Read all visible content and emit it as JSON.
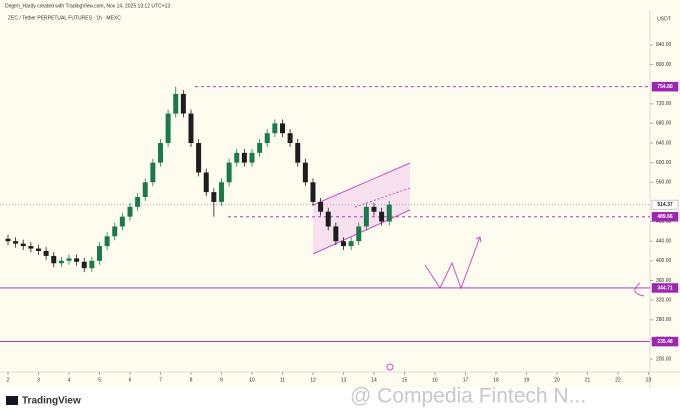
{
  "header": {
    "credit": "Degen_Hardy created with TradingView.com, Nov 14, 2025 13:12 UTC+13",
    "symbol": "ZEC / Tether PERPETUAL FUTURES · 1h · MEXC"
  },
  "chart_data": {
    "type": "candlestick",
    "currency": "USDT",
    "up_color": "#1b7a4a",
    "down_color": "#1e1e1e",
    "x": [
      2,
      2.25,
      2.5,
      2.75,
      3,
      3.25,
      3.5,
      3.75,
      4,
      4.25,
      4.5,
      4.75,
      5,
      5.25,
      5.5,
      5.75,
      6,
      6.25,
      6.5,
      6.75,
      7,
      7.25,
      7.5,
      7.75,
      8,
      8.25,
      8.5,
      8.75,
      9,
      9.25,
      9.5,
      9.75,
      10,
      10.25,
      10.5,
      10.75,
      11,
      11.25,
      11.5,
      11.75,
      12,
      12.25,
      12.5,
      12.75,
      13,
      13.25,
      13.5,
      13.75,
      14,
      14.25,
      14.5
    ],
    "open": [
      445,
      440,
      435,
      430,
      425,
      420,
      410,
      395,
      400,
      405,
      398,
      385,
      400,
      430,
      450,
      470,
      490,
      510,
      530,
      560,
      600,
      640,
      700,
      740,
      700,
      640,
      580,
      540,
      520,
      560,
      600,
      620,
      600,
      620,
      640,
      660,
      680,
      660,
      640,
      600,
      560,
      520,
      500,
      470,
      440,
      430,
      440,
      470,
      510,
      500,
      480
    ],
    "high": [
      453,
      448,
      443,
      438,
      433,
      428,
      418,
      408,
      413,
      413,
      406,
      408,
      438,
      458,
      478,
      498,
      518,
      538,
      568,
      608,
      648,
      708,
      754.8,
      748,
      708,
      648,
      588,
      548,
      568,
      608,
      628,
      628,
      628,
      648,
      668,
      688,
      688,
      668,
      648,
      608,
      568,
      528,
      508,
      478,
      448,
      448,
      478,
      518,
      518,
      508,
      522
    ],
    "low": [
      432,
      427,
      422,
      417,
      412,
      402,
      387,
      387,
      392,
      390,
      377,
      377,
      392,
      422,
      442,
      462,
      482,
      502,
      522,
      552,
      592,
      632,
      692,
      692,
      632,
      572,
      532,
      489.66,
      512,
      552,
      592,
      592,
      592,
      612,
      632,
      652,
      652,
      632,
      592,
      552,
      512,
      492,
      462,
      432,
      422,
      422,
      432,
      462,
      492,
      472,
      472
    ],
    "close": [
      440,
      435,
      430,
      425,
      420,
      410,
      395,
      400,
      405,
      398,
      385,
      400,
      430,
      450,
      470,
      490,
      510,
      530,
      560,
      600,
      640,
      700,
      740,
      700,
      640,
      580,
      540,
      520,
      560,
      600,
      620,
      600,
      620,
      640,
      660,
      680,
      660,
      640,
      600,
      560,
      520,
      500,
      470,
      440,
      430,
      440,
      470,
      510,
      500,
      480,
      514.37
    ],
    "xlim": [
      1.738,
      23.05
    ],
    "xticks": [
      2,
      3,
      4,
      5,
      6,
      7,
      8,
      9,
      10,
      11,
      12,
      13,
      14,
      15,
      16,
      17,
      18,
      19,
      20,
      21,
      22,
      23
    ],
    "ylim": [
      173.5,
      911
    ],
    "yticks": [
      {
        "value": 200,
        "label": "200.00"
      },
      {
        "value": 240,
        "label": "240.00"
      },
      {
        "value": 280,
        "label": "280.00"
      },
      {
        "value": 320,
        "label": "320.00"
      },
      {
        "value": 360,
        "label": "360.00"
      },
      {
        "value": 400,
        "label": "400.00"
      },
      {
        "value": 440,
        "label": "440.00"
      },
      {
        "value": 480,
        "label": "480.00"
      },
      {
        "value": 560,
        "label": "560.00"
      },
      {
        "value": 600,
        "label": "600.00"
      },
      {
        "value": 640,
        "label": "640.00"
      },
      {
        "value": 680,
        "label": "680.00"
      },
      {
        "value": 720,
        "label": "720.00"
      },
      {
        "value": 800,
        "label": "800.00"
      },
      {
        "value": 840,
        "label": "840.00"
      }
    ],
    "levels": [
      {
        "value": 754.8,
        "label": "754.80",
        "color": "#9c27b0"
      },
      {
        "value": 514.37,
        "label": "514.37",
        "color": "#9e9e9e"
      },
      {
        "value": 489.66,
        "label": "489.66",
        "color": "#9c27b0"
      },
      {
        "value": 344.71,
        "label": "344.71",
        "color": "#9c27b0"
      },
      {
        "value": 235.48,
        "label": "235.48",
        "color": "#9c27b0"
      }
    ]
  },
  "footer": {
    "brand": "TradingView",
    "watermark": "@ Compedia Fintech N..."
  }
}
